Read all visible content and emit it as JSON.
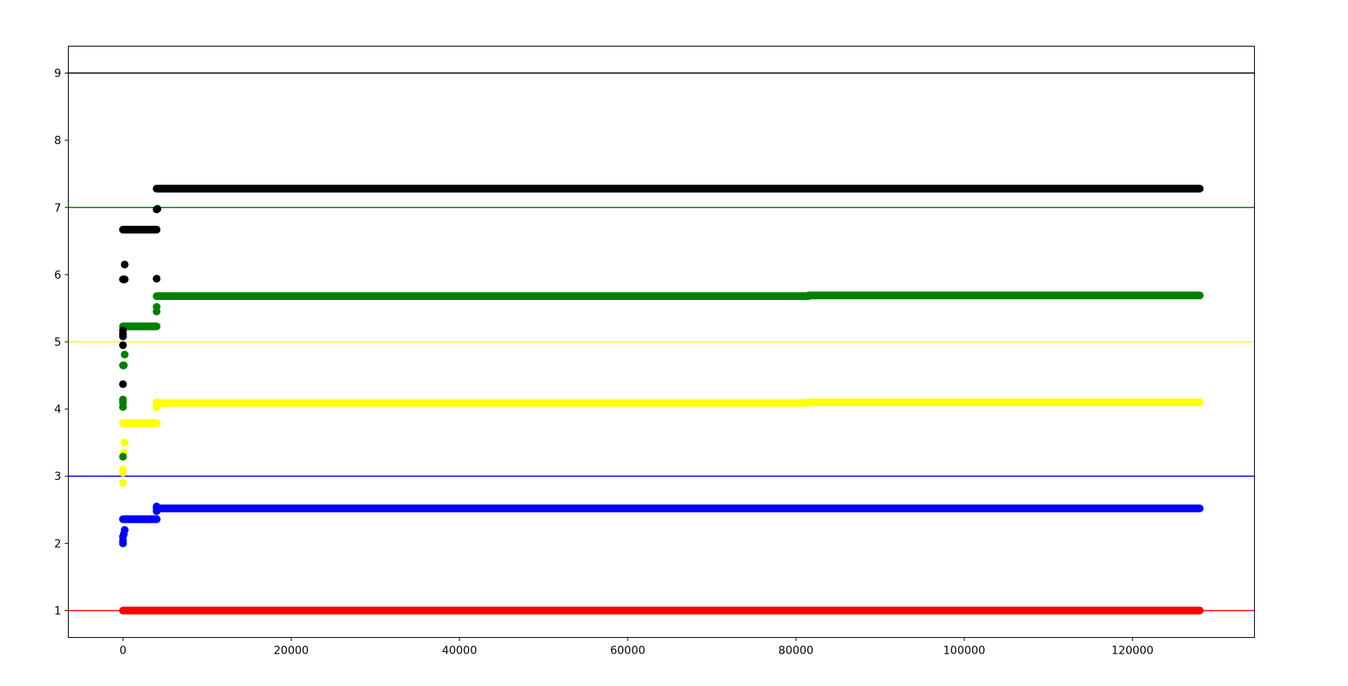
{
  "chart_data": {
    "type": "scatter",
    "title": "",
    "xlabel": "",
    "ylabel": "",
    "xlim": [
      -6500,
      134500
    ],
    "ylim": [
      0.6,
      9.4
    ],
    "xticks": [
      0,
      20000,
      40000,
      60000,
      80000,
      100000,
      120000
    ],
    "yticks": [
      1,
      2,
      3,
      4,
      5,
      6,
      7,
      8,
      9
    ],
    "grid": false,
    "legend": "none",
    "hlines": [
      {
        "y": 1,
        "color": "#ff0000"
      },
      {
        "y": 3,
        "color": "#0000ff"
      },
      {
        "y": 5,
        "color": "#ffff00"
      },
      {
        "y": 7,
        "color": "#008000"
      },
      {
        "y": 9,
        "color": "#000000"
      }
    ],
    "series": [
      {
        "color": "#ff0000",
        "bands": [
          {
            "x0": 0,
            "x1": 128000,
            "y": 1.0
          }
        ],
        "points": []
      },
      {
        "color": "#0000ff",
        "bands": [
          {
            "x0": 0,
            "x1": 4000,
            "y": 2.36
          },
          {
            "x0": 4000,
            "x1": 128000,
            "y": 2.52
          }
        ],
        "points": [
          {
            "x": 0,
            "y": 2.0
          },
          {
            "x": 0,
            "y": 2.04
          },
          {
            "x": 0,
            "y": 2.1
          },
          {
            "x": 100,
            "y": 2.14
          },
          {
            "x": 200,
            "y": 2.2
          },
          {
            "x": 4000,
            "y": 2.36
          },
          {
            "x": 4000,
            "y": 2.48
          },
          {
            "x": 4000,
            "y": 2.55
          }
        ]
      },
      {
        "color": "#ffff00",
        "bands": [
          {
            "x0": 0,
            "x1": 4000,
            "y": 3.79
          },
          {
            "x0": 4000,
            "x1": 81500,
            "y": 4.09
          },
          {
            "x0": 81500,
            "x1": 128000,
            "y": 4.1
          }
        ],
        "points": [
          {
            "x": 0,
            "y": 2.9
          },
          {
            "x": 0,
            "y": 3.05
          },
          {
            "x": 0,
            "y": 3.1
          },
          {
            "x": 100,
            "y": 3.35
          },
          {
            "x": 200,
            "y": 3.5
          },
          {
            "x": 4000,
            "y": 4.02
          },
          {
            "x": 4000,
            "y": 4.1
          }
        ]
      },
      {
        "color": "#008000",
        "bands": [
          {
            "x0": 0,
            "x1": 4000,
            "y": 5.23
          },
          {
            "x0": 4000,
            "x1": 81500,
            "y": 5.68
          },
          {
            "x0": 81500,
            "x1": 128000,
            "y": 5.69
          }
        ],
        "points": [
          {
            "x": 0,
            "y": 3.29
          },
          {
            "x": 0,
            "y": 4.03
          },
          {
            "x": 0,
            "y": 4.1
          },
          {
            "x": 0,
            "y": 4.14
          },
          {
            "x": 0,
            "y": 4.65
          },
          {
            "x": 100,
            "y": 4.65
          },
          {
            "x": 200,
            "y": 4.81
          },
          {
            "x": 4000,
            "y": 5.45
          },
          {
            "x": 4000,
            "y": 5.52
          }
        ]
      },
      {
        "color": "#000000",
        "bands": [
          {
            "x0": 0,
            "x1": 4000,
            "y": 6.67
          },
          {
            "x0": 4000,
            "x1": 128000,
            "y": 7.28
          }
        ],
        "points": [
          {
            "x": 0,
            "y": 4.37
          },
          {
            "x": 0,
            "y": 4.95
          },
          {
            "x": 0,
            "y": 5.08
          },
          {
            "x": 0,
            "y": 5.12
          },
          {
            "x": 0,
            "y": 5.17
          },
          {
            "x": 0,
            "y": 5.93
          },
          {
            "x": 100,
            "y": 5.93
          },
          {
            "x": 200,
            "y": 5.93
          },
          {
            "x": 200,
            "y": 6.15
          },
          {
            "x": 4000,
            "y": 5.94
          },
          {
            "x": 4000,
            "y": 6.97
          },
          {
            "x": 4100,
            "y": 6.98
          }
        ]
      }
    ]
  }
}
